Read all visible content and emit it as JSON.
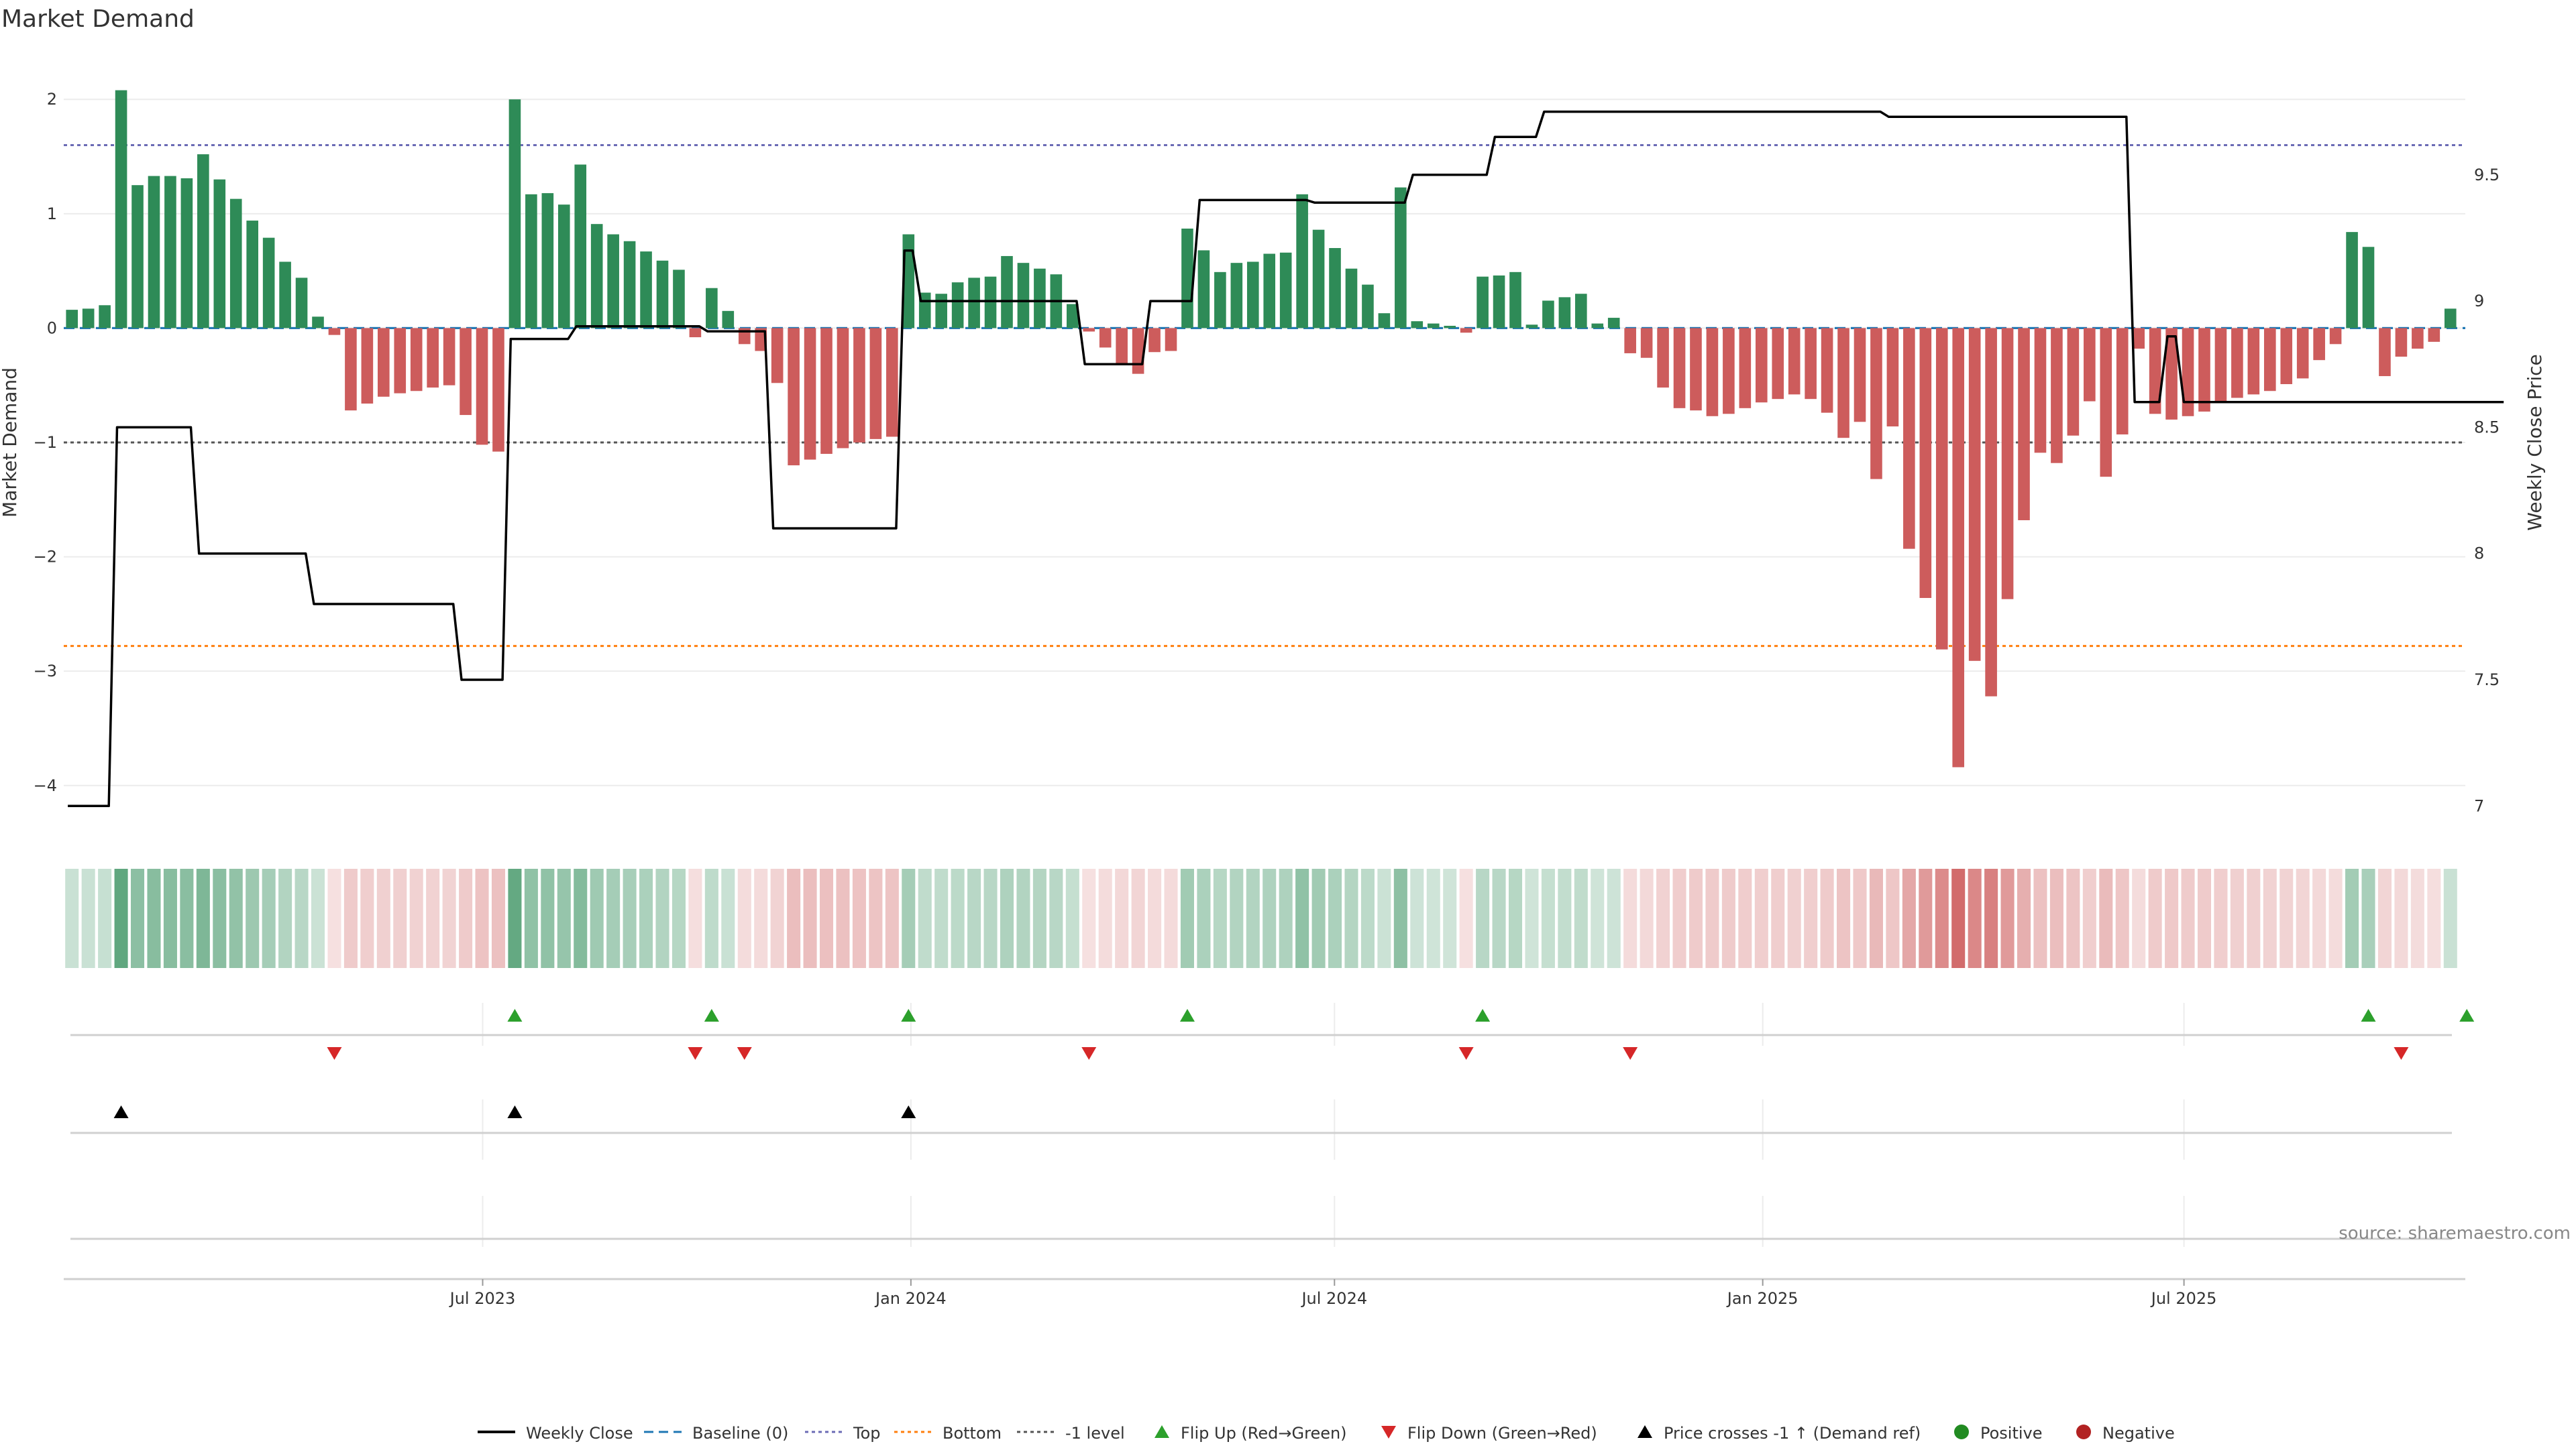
{
  "chart_data": {
    "type": "bar",
    "title": "Market Demand",
    "ylabel": "Market Demand",
    "y2label": "Weekly Close Price",
    "ylim": [
      -4.4,
      2.4
    ],
    "y2lim": [
      6.9,
      9.98
    ],
    "yticks": [
      2,
      1,
      0,
      -1,
      -2,
      -3,
      -4
    ],
    "ytick_labels": [
      "2",
      "1",
      "0",
      "−1",
      "−2",
      "−3",
      "−4"
    ],
    "y2ticks": [
      9.5,
      9,
      8.5,
      8,
      7.5,
      7
    ],
    "y2tick_labels": [
      "9.5",
      "9",
      "8.5",
      "8",
      "7.5",
      "7"
    ],
    "x_start": "2023-01-02",
    "x_end": "2025-10-27",
    "xticks": [
      {
        "date": "2023-07-01",
        "label": "Jul 2023"
      },
      {
        "date": "2024-01-01",
        "label": "Jan 2024"
      },
      {
        "date": "2024-07-01",
        "label": "Jul 2024"
      },
      {
        "date": "2025-01-01",
        "label": "Jan 2025"
      },
      {
        "date": "2025-07-01",
        "label": "Jul 2025"
      }
    ],
    "reference_lines": [
      {
        "name": "Baseline (0)",
        "value": 0,
        "color": "#1f77b4",
        "dash": "dashed"
      },
      {
        "name": "Top",
        "value": 1.6,
        "color": "#6b6bb5",
        "dash": "dotted"
      },
      {
        "name": "Bottom",
        "value": -2.78,
        "color": "#ff7f0e",
        "dash": "dotted"
      },
      {
        "name": "-1 level",
        "value": -1,
        "color": "#555555",
        "dash": "dotted"
      }
    ],
    "colors": {
      "positive": "#2e8b57",
      "negative": "#cd5c5c",
      "price": "#000000",
      "flip_up": "#2ca02c",
      "flip_down": "#d62728",
      "cross": "#000000",
      "positive_dot": "#228b22",
      "negative_dot": "#b22222"
    },
    "demand": [
      0.16,
      0.17,
      0.2,
      2.08,
      1.25,
      1.33,
      1.33,
      1.31,
      1.52,
      1.3,
      1.13,
      0.94,
      0.79,
      0.58,
      0.44,
      0.1,
      -0.06,
      -0.72,
      -0.66,
      -0.6,
      -0.57,
      -0.55,
      -0.52,
      -0.5,
      -0.76,
      -1.02,
      -1.08,
      2.0,
      1.17,
      1.18,
      1.08,
      1.43,
      0.91,
      0.82,
      0.76,
      0.67,
      0.59,
      0.51,
      -0.08,
      0.35,
      0.15,
      -0.14,
      -0.2,
      -0.48,
      -1.2,
      -1.15,
      -1.1,
      -1.05,
      -1.0,
      -0.97,
      -0.95,
      0.82,
      0.31,
      0.3,
      0.4,
      0.44,
      0.45,
      0.63,
      0.57,
      0.52,
      0.47,
      0.21,
      -0.03,
      -0.17,
      -0.32,
      -0.4,
      -0.21,
      -0.2,
      0.87,
      0.68,
      0.49,
      0.57,
      0.58,
      0.65,
      0.66,
      1.17,
      0.86,
      0.7,
      0.52,
      0.38,
      0.13,
      1.23,
      0.06,
      0.04,
      0.02,
      -0.04,
      0.45,
      0.46,
      0.49,
      0.03,
      0.24,
      0.27,
      0.3,
      0.04,
      0.09,
      -0.22,
      -0.26,
      -0.52,
      -0.7,
      -0.72,
      -0.77,
      -0.75,
      -0.7,
      -0.65,
      -0.62,
      -0.58,
      -0.62,
      -0.74,
      -0.96,
      -0.82,
      -1.32,
      -0.86,
      -1.93,
      -2.36,
      -2.81,
      -3.84,
      -2.91,
      -3.22,
      -2.37,
      -1.68,
      -1.09,
      -1.18,
      -0.94,
      -0.64,
      -1.3,
      -0.93,
      -0.18,
      -0.75,
      -0.8,
      -0.77,
      -0.73,
      -0.65,
      -0.61,
      -0.58,
      -0.55,
      -0.49,
      -0.44,
      -0.28,
      -0.14,
      0.84,
      0.71,
      -0.42,
      -0.25,
      -0.18,
      -0.12,
      0.17
    ],
    "weekly_close": [
      7.0,
      7.0,
      7.0,
      8.5,
      8.5,
      8.5,
      8.5,
      8.5,
      8.0,
      8.0,
      8.0,
      8.0,
      8.0,
      8.0,
      8.0,
      7.8,
      7.8,
      7.8,
      7.8,
      7.8,
      7.8,
      7.8,
      7.8,
      7.8,
      7.5,
      7.5,
      7.5,
      8.85,
      8.85,
      8.85,
      8.85,
      8.9,
      8.9,
      8.9,
      8.9,
      8.9,
      8.9,
      8.9,
      8.9,
      8.88,
      8.88,
      8.88,
      8.88,
      8.1,
      8.1,
      8.1,
      8.1,
      8.1,
      8.1,
      8.1,
      8.1,
      9.2,
      9.0,
      9.0,
      9.0,
      9.0,
      9.0,
      9.0,
      9.0,
      9.0,
      9.0,
      9.0,
      8.75,
      8.75,
      8.75,
      8.75,
      9.0,
      9.0,
      9.0,
      9.4,
      9.4,
      9.4,
      9.4,
      9.4,
      9.4,
      9.4,
      9.39,
      9.39,
      9.39,
      9.39,
      9.39,
      9.39,
      9.5,
      9.5,
      9.5,
      9.5,
      9.5,
      9.65,
      9.65,
      9.65,
      9.75,
      9.75,
      9.75,
      9.75,
      9.75,
      9.75,
      9.75,
      9.75,
      9.75,
      9.75,
      9.75,
      9.75,
      9.75,
      9.75,
      9.75,
      9.75,
      9.75,
      9.75,
      9.75,
      9.75,
      9.75,
      9.73,
      9.73,
      9.73,
      9.73,
      9.73,
      9.73,
      9.73,
      9.73,
      9.73,
      9.73,
      9.73,
      9.73,
      9.73,
      9.73,
      9.73,
      8.6,
      8.6,
      8.86,
      8.6,
      8.6,
      8.6,
      8.6,
      8.6,
      8.6,
      8.6,
      8.6,
      8.6,
      8.6,
      8.6,
      8.6,
      8.6,
      8.6,
      8.6,
      8.6,
      8.6,
      8.6,
      8.6,
      8.6
    ],
    "flip_up_weeks": [
      27,
      39,
      51,
      68,
      86,
      140,
      146
    ],
    "flip_down_weeks": [
      16,
      38,
      41,
      62,
      85,
      95,
      142
    ],
    "price_cross_weeks": [
      3,
      27,
      51
    ],
    "legend": [
      "Weekly Close",
      "Baseline (0)",
      "Top",
      "Bottom",
      "-1 level",
      "Flip Up (Red→Green)",
      "Flip Down (Green→Red)",
      "Price crosses -1 ↑ (Demand ref)",
      "Positive",
      "Negative"
    ],
    "legend_placement": "bottom-center",
    "grid": true
  },
  "source": "source: sharemaestro.com"
}
